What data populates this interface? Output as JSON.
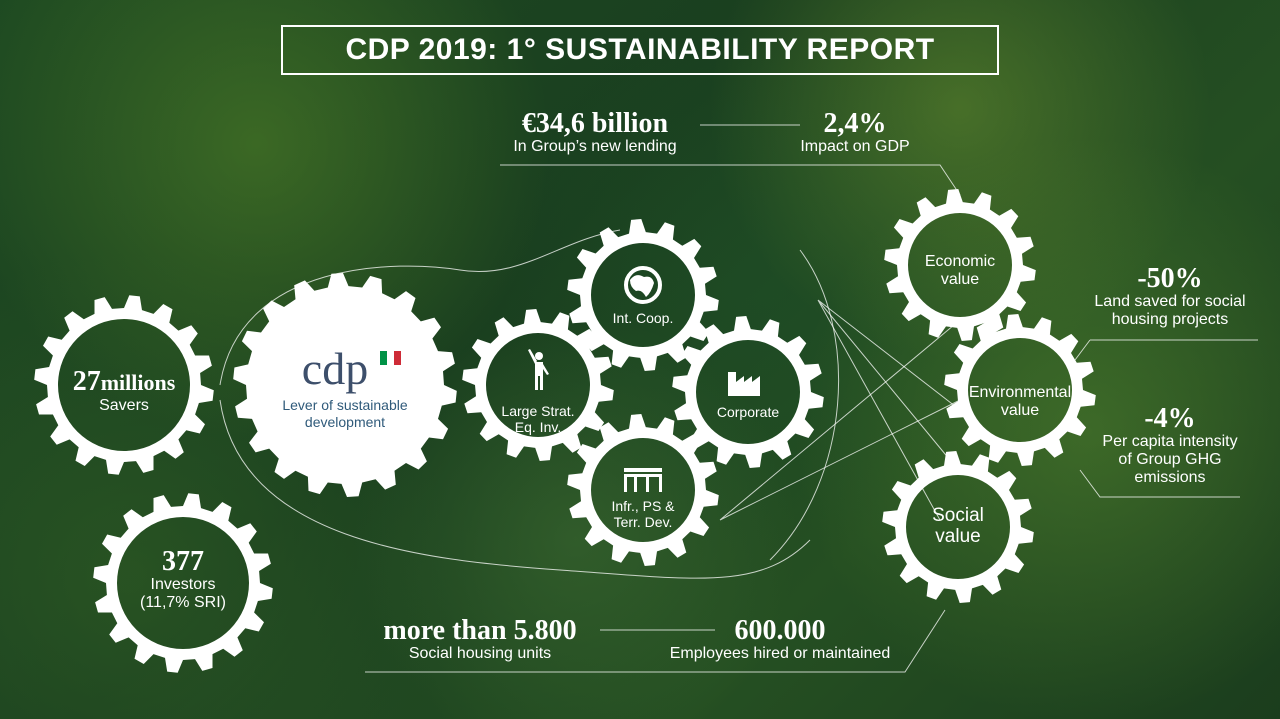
{
  "title": "CDP 2019: 1° SUSTAINABILITY REPORT",
  "stats": {
    "lending": {
      "value": "€34,6 billion",
      "label": "In Group’s new lending"
    },
    "gdp": {
      "value": "2,4%",
      "label": "Impact on GDP"
    },
    "housing": {
      "value": "more than 5.800",
      "label": "Social housing units"
    },
    "employees": {
      "value": "600.000",
      "label": "Employees hired or maintained"
    },
    "land": {
      "value": "-50%",
      "label1": "Land saved for social",
      "label2": "housing projects"
    },
    "ghg": {
      "value": "-4%",
      "label1": "Per capita intensity",
      "label2": "of Group GHG",
      "label3": "emissions"
    }
  },
  "savers": {
    "value": "27",
    "unit": "millions",
    "label": "Savers"
  },
  "investors": {
    "value": "377",
    "label1": "Investors",
    "label2": "(11,7% SRI)"
  },
  "cdp": {
    "logo": "cdp",
    "label1": "Lever of sustainable",
    "label2": "development",
    "flag_colors": [
      "#009246",
      "#ffffff",
      "#ce2b37"
    ]
  },
  "areas": {
    "intcoop": {
      "label": "Int. Coop.",
      "icon": "globe-icon"
    },
    "large": {
      "label1": "Large Strat.",
      "label2": "Eq. Inv.",
      "icon": "person-icon"
    },
    "corporate": {
      "label": "Corporate",
      "icon": "factory-icon"
    },
    "infr": {
      "label1": "Infr., PS &",
      "label2": "Terr. Dev.",
      "icon": "building-icon"
    }
  },
  "values": {
    "economic": {
      "label1": "Economic",
      "label2": "value"
    },
    "environmental": {
      "label1": "Environmental",
      "label2": "value"
    },
    "social": {
      "label1": "Social",
      "label2": "value"
    }
  }
}
